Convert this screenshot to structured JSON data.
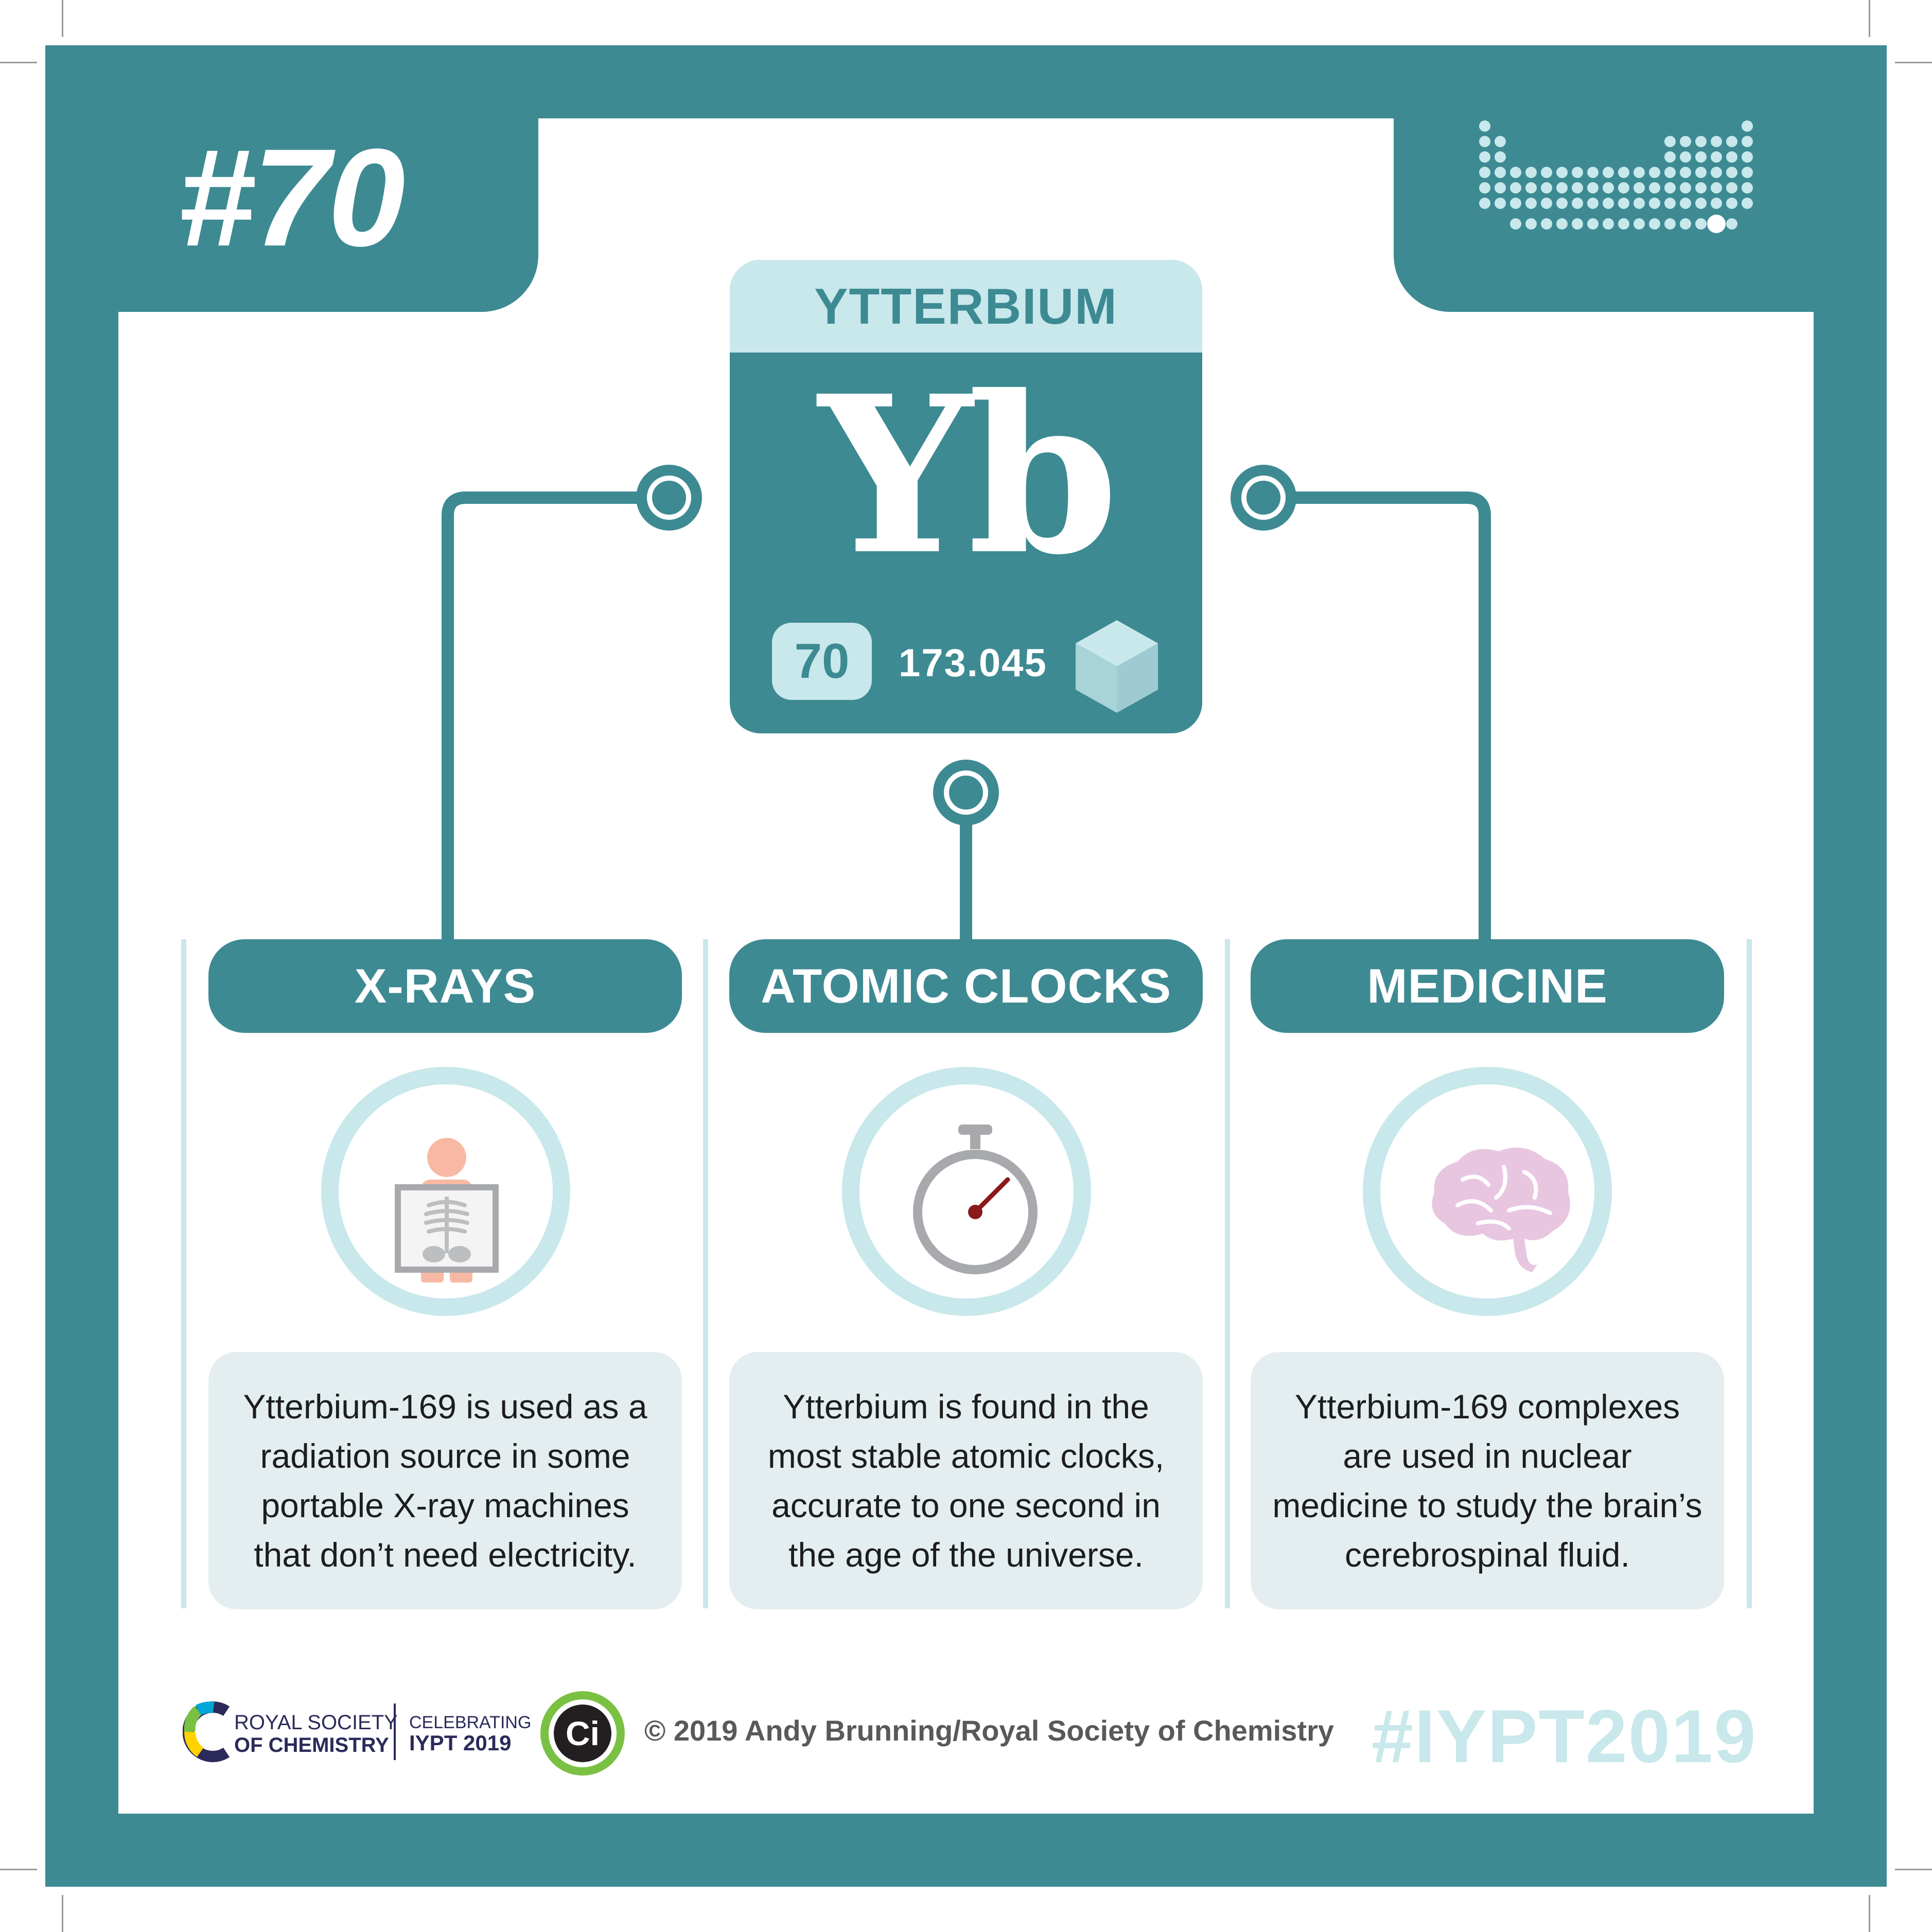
{
  "card": {
    "number": "#70",
    "element": {
      "name": "YTTERBIUM",
      "symbol": "Yb",
      "atomic_number": "70",
      "atomic_mass": "173.045"
    },
    "columns": [
      {
        "title": "X-RAYS",
        "icon": "x-ray-person-icon",
        "text": "Ytterbium-169 is used as a radiation source in some portable X-ray machines that don’t need electricity."
      },
      {
        "title": "ATOMIC CLOCKS",
        "icon": "stopwatch-icon",
        "text": "Ytterbium is found in the most stable atomic clocks, accurate to one second in the age of the universe."
      },
      {
        "title": "MEDICINE",
        "icon": "brain-icon",
        "text": "Ytterbium-169 complexes are used in nuclear medicine to study the brain’s cerebrospinal fluid."
      }
    ]
  },
  "footer": {
    "rsc_line1": "ROYAL SOCIETY",
    "rsc_line2": "OF CHEMISTRY",
    "celebrating_line1": "CELEBRATING",
    "celebrating_line2": "IYPT 2019",
    "ci_logo": "Ci",
    "copyright": "© 2019 Andy Brunning/Royal Society of Chemistry",
    "hashtag": "#IYPT2019"
  },
  "colors": {
    "teal": "#3d8a93",
    "light_teal": "#c8e8eb",
    "panel": "#e4eef0"
  }
}
